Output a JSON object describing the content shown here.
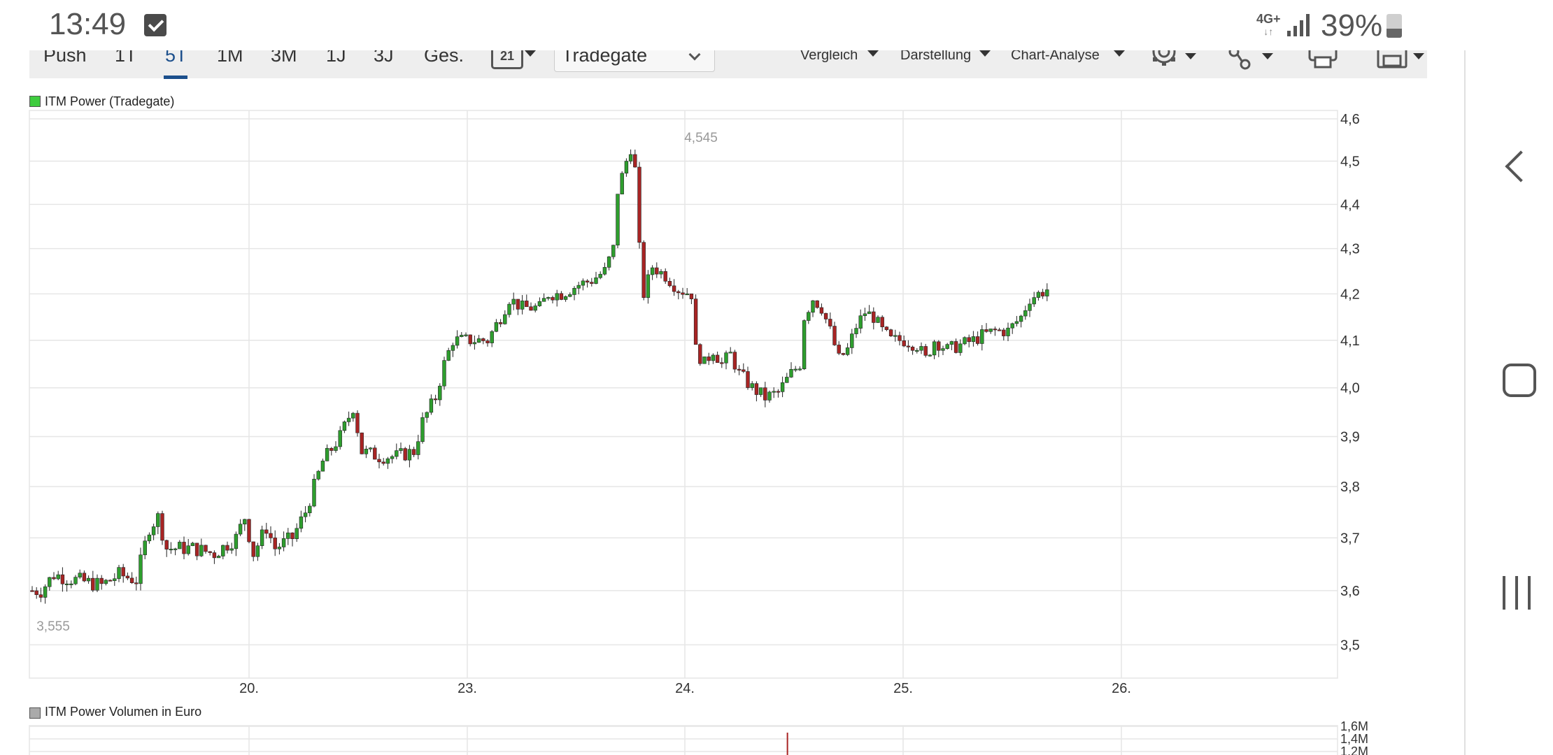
{
  "status_bar": {
    "time": "13:49",
    "network": "4G+",
    "network_arrows": "↓↑",
    "battery_percent": "39%",
    "battery_level": 0.39,
    "icons": [
      "check-notification-icon",
      "signal-icon",
      "battery-icon"
    ]
  },
  "toolbar": {
    "range_tabs": [
      "Push",
      "1T",
      "5T",
      "1M",
      "3M",
      "1J",
      "3J",
      "Ges."
    ],
    "active_tab": "5T",
    "calendar_icon_text": "21",
    "exchange": "Tradegate",
    "menus": [
      "Vergleich",
      "Darstellung",
      "Chart-Analyse"
    ],
    "tool_icons": [
      "settings-gear-icon",
      "share-icon",
      "print-icon",
      "save-icon"
    ]
  },
  "colors": {
    "up": "#2e9e2e",
    "down": "#a82424",
    "wick": "#222222",
    "grid": "#e6e6e6",
    "accent": "#1c4f8c",
    "legend_price": "#3ecc3e",
    "legend_volume": "#aaaaaa",
    "annotation": "#999999"
  },
  "chart_data": [
    {
      "type": "line",
      "title": "",
      "legend": "ITM Power (Tradegate)",
      "render": "candlestick",
      "x_labels": [
        "20.",
        "23.",
        "24.",
        "25.",
        "26."
      ],
      "y_ticks": [
        "4,6",
        "4,5",
        "4,4",
        "4,3",
        "4,2",
        "4,1",
        "4,0",
        "3,9",
        "3,8",
        "3,7",
        "3,6",
        "3,5"
      ],
      "ylim": [
        3.44,
        4.62
      ],
      "y_scale": "log",
      "annotations": {
        "max_label": "4,545",
        "min_label": "3,555",
        "max": 4.545,
        "min": 3.555
      },
      "grid": true,
      "anchors": [
        [
          0,
          3.6
        ],
        [
          2,
          3.6
        ],
        [
          5,
          3.63
        ],
        [
          10,
          3.62
        ],
        [
          16,
          3.61
        ],
        [
          20,
          3.63
        ],
        [
          24,
          3.62
        ],
        [
          27,
          3.72
        ],
        [
          29,
          3.74
        ],
        [
          31,
          3.68
        ],
        [
          37,
          3.68
        ],
        [
          42,
          3.67
        ],
        [
          47,
          3.7
        ],
        [
          49,
          3.74
        ],
        [
          51,
          3.67
        ],
        [
          54,
          3.72
        ],
        [
          56,
          3.68
        ],
        [
          60,
          3.7
        ],
        [
          63,
          3.75
        ],
        [
          67,
          3.85
        ],
        [
          71,
          3.9
        ],
        [
          73,
          3.94
        ],
        [
          74,
          3.96
        ],
        [
          76,
          3.87
        ],
        [
          80,
          3.86
        ],
        [
          84,
          3.86
        ],
        [
          88,
          3.87
        ],
        [
          90,
          3.93
        ],
        [
          93,
          3.98
        ],
        [
          95,
          4.05
        ],
        [
          97,
          4.1
        ],
        [
          101,
          4.1
        ],
        [
          105,
          4.1
        ],
        [
          108,
          4.15
        ],
        [
          110,
          4.19
        ],
        [
          113,
          4.17
        ],
        [
          117,
          4.17
        ],
        [
          119,
          4.2
        ],
        [
          122,
          4.2
        ],
        [
          126,
          4.22
        ],
        [
          129,
          4.23
        ],
        [
          132,
          4.25
        ],
        [
          134,
          4.3
        ],
        [
          135,
          4.43
        ],
        [
          137,
          4.5
        ],
        [
          138,
          4.53
        ],
        [
          139,
          4.48
        ],
        [
          140,
          4.3
        ],
        [
          141,
          4.2
        ],
        [
          143,
          4.26
        ],
        [
          146,
          4.24
        ],
        [
          149,
          4.21
        ],
        [
          152,
          4.2
        ],
        [
          153,
          4.08
        ],
        [
          155,
          4.05
        ],
        [
          157,
          4.08
        ],
        [
          159,
          4.05
        ],
        [
          161,
          4.07
        ],
        [
          163,
          4.03
        ],
        [
          166,
          4.0
        ],
        [
          169,
          3.98
        ],
        [
          172,
          3.99
        ],
        [
          175,
          4.03
        ],
        [
          177,
          4.05
        ],
        [
          178,
          4.15
        ],
        [
          180,
          4.19
        ],
        [
          182,
          4.17
        ],
        [
          184,
          4.12
        ],
        [
          186,
          4.06
        ],
        [
          188,
          4.08
        ],
        [
          190,
          4.13
        ],
        [
          192,
          4.16
        ],
        [
          194,
          4.15
        ],
        [
          196,
          4.12
        ],
        [
          198,
          4.1
        ],
        [
          201,
          4.1
        ],
        [
          204,
          4.09
        ],
        [
          206,
          4.06
        ],
        [
          208,
          4.1
        ],
        [
          211,
          4.08
        ],
        [
          214,
          4.09
        ],
        [
          217,
          4.1
        ],
        [
          219,
          4.11
        ],
        [
          222,
          4.12
        ],
        [
          225,
          4.12
        ],
        [
          228,
          4.15
        ],
        [
          230,
          4.19
        ],
        [
          232,
          4.2
        ],
        [
          234,
          4.21
        ]
      ]
    },
    {
      "type": "bar",
      "title": "",
      "legend": "ITM Power Volumen in Euro",
      "y_ticks": [
        "1,6M",
        "1,4M",
        "1,2M"
      ],
      "ylim": [
        0,
        1.6
      ],
      "visible_spikes": [
        {
          "at_x_label_offset": 0.47,
          "value_m": 1.5
        }
      ]
    }
  ],
  "nav_bar": {
    "icons": [
      "back-icon",
      "home-icon",
      "recent-apps-icon"
    ]
  }
}
